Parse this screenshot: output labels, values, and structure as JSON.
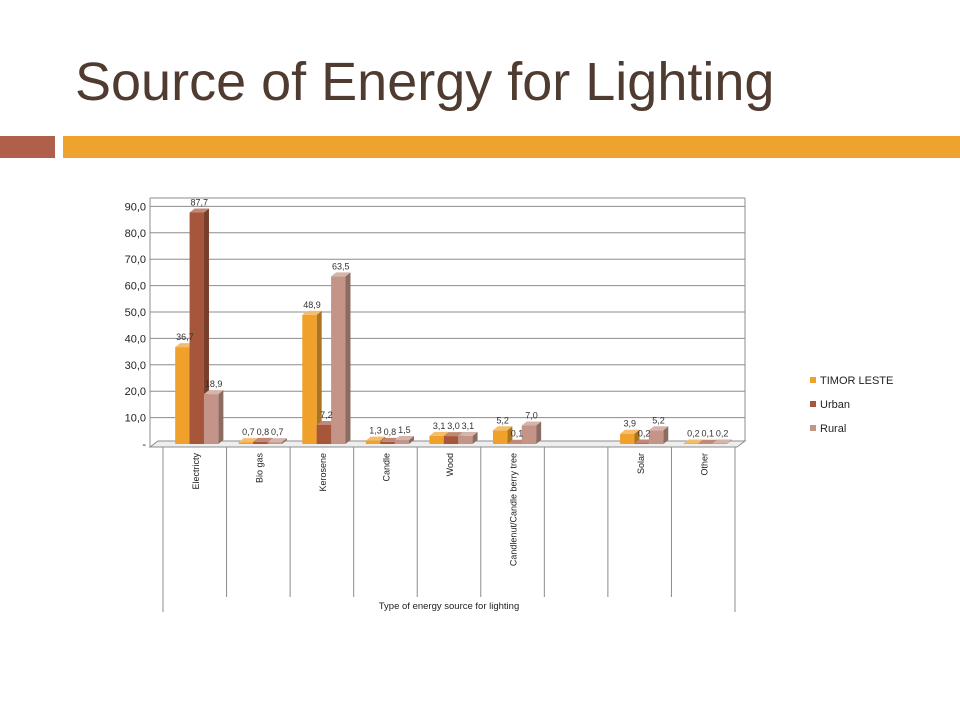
{
  "slide": {
    "title": "Source of Energy for Lighting"
  },
  "theme": {
    "title_color": "#4F3B30",
    "accent_block_color": "#B0604A",
    "accent_bar_color": "#F0A22E"
  },
  "chart_data": {
    "type": "bar",
    "three_d": true,
    "categories": [
      "Electricty",
      "Bio gas",
      "Kerosene",
      "Candle",
      "Wood",
      "Candlenut/Candle berry tree",
      "",
      "Solar",
      "Other"
    ],
    "series": [
      {
        "name": "TIMOR LESTE",
        "color": "#EFA12B",
        "values": [
          36.7,
          0.7,
          48.9,
          1.3,
          3.1,
          5.2,
          null,
          3.9,
          0.2
        ],
        "data_labels": [
          "36,7",
          "0,7",
          "48,9",
          "1,3",
          "3,1",
          "5,2",
          null,
          "3,9",
          "0,2"
        ]
      },
      {
        "name": "Urban",
        "color": "#A6563A",
        "values": [
          87.7,
          0.8,
          7.2,
          0.8,
          3.0,
          0.1,
          null,
          0.2,
          0.1
        ],
        "data_labels": [
          "87,7",
          "0,8",
          "7,2",
          "0,8",
          "3,0",
          "0,1",
          null,
          "0,2",
          "0,1"
        ]
      },
      {
        "name": "Rural",
        "color": "#C39487",
        "values": [
          18.9,
          0.7,
          63.5,
          1.5,
          3.1,
          7.0,
          null,
          5.2,
          0.2
        ],
        "data_labels": [
          "18,9",
          "0,7",
          "63,5",
          "1,5",
          "3,1",
          "7,0",
          null,
          "5,2",
          "0,2"
        ]
      }
    ],
    "xlabel": "Type of energy source for lighting",
    "ylim": [
      0,
      90
    ],
    "y_tick_labels": [
      "-",
      "10,0",
      "20,0",
      "30,0",
      "40,0",
      "50,0",
      "60,0",
      "70,0",
      "80,0",
      "90,0"
    ],
    "grid": true,
    "legend": "right"
  }
}
